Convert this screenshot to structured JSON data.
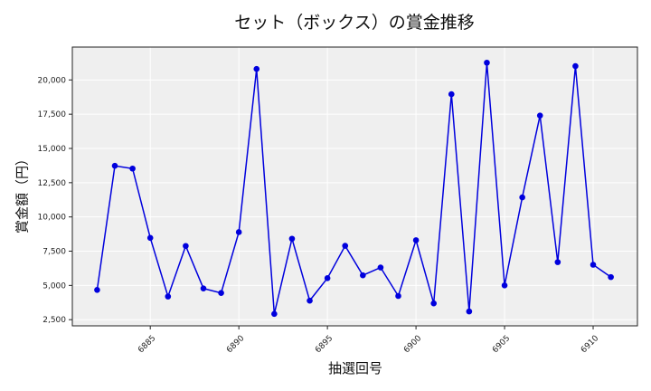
{
  "chart_data": {
    "type": "line",
    "title": "セット（ボックス）の賞金推移",
    "xlabel": "抽選回号",
    "ylabel": "賞金額（円）",
    "x": [
      6882,
      6883,
      6884,
      6885,
      6886,
      6887,
      6888,
      6889,
      6890,
      6891,
      6892,
      6893,
      6894,
      6895,
      6896,
      6897,
      6898,
      6899,
      6900,
      6901,
      6902,
      6903,
      6904,
      6905,
      6906,
      6907,
      6908,
      6909,
      6910,
      6911
    ],
    "series": [
      {
        "name": "賞金額",
        "color": "#0000dd",
        "values": [
          4670,
          13730,
          13530,
          8470,
          4190,
          7880,
          4780,
          4450,
          8890,
          20800,
          2920,
          8410,
          3890,
          5530,
          7890,
          5740,
          6310,
          4230,
          8300,
          3690,
          18960,
          3100,
          21260,
          5000,
          11430,
          17400,
          6700,
          21010,
          6510,
          5610
        ]
      }
    ],
    "xticks": [
      6885,
      6890,
      6895,
      6900,
      6905,
      6910
    ],
    "yticks": [
      2500,
      5000,
      7500,
      10000,
      12500,
      15000,
      17500,
      20000
    ],
    "ytick_labels": [
      "2,500",
      "5,000",
      "7,500",
      "10,000",
      "12,500",
      "15,000",
      "17,500",
      "20,000"
    ],
    "xlim": [
      6880.6,
      6912.5
    ],
    "ylim": [
      2050,
      22400
    ],
    "grid": true,
    "legend": null
  }
}
